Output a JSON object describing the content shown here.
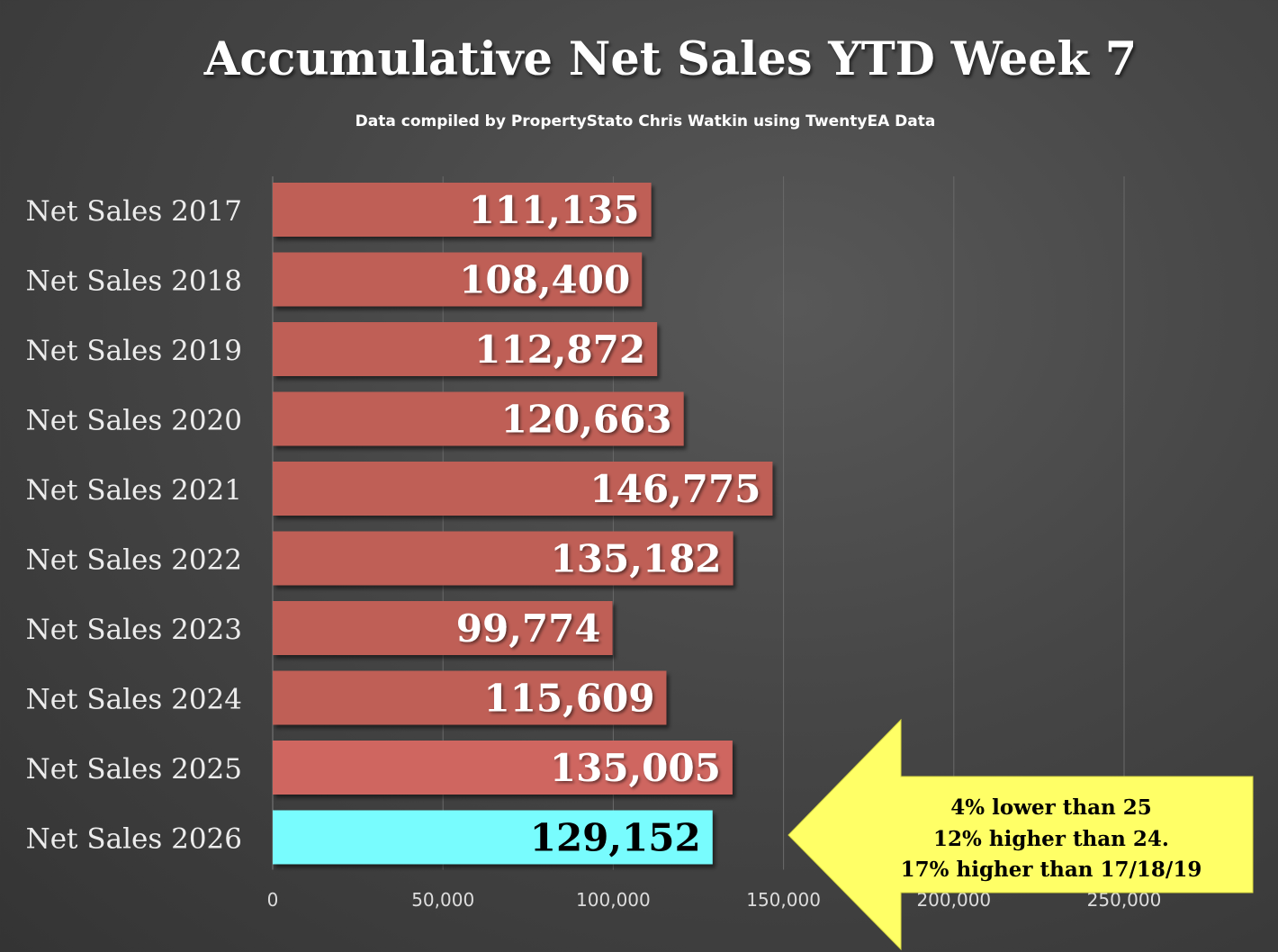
{
  "title": "Accumulative Net Sales YTD Week 7",
  "subtitle": "Data compiled by PropertyStato Chris Watkin using TwentyEA Data",
  "chart_data": {
    "type": "bar",
    "orientation": "horizontal",
    "title": "Accumulative Net Sales YTD Week 7",
    "subtitle": "Data compiled by PropertyStato Chris Watkin using TwentyEA Data",
    "categories": [
      "Net Sales 2017",
      "Net Sales 2018",
      "Net Sales 2019",
      "Net Sales 2020",
      "Net Sales 2021",
      "Net Sales 2022",
      "Net Sales 2023",
      "Net Sales 2024",
      "Net Sales 2025",
      "Net Sales 2026"
    ],
    "values": [
      111135,
      108400,
      112872,
      120663,
      146775,
      135182,
      99774,
      115609,
      135005,
      129152
    ],
    "value_labels": [
      "111,135",
      "108,400",
      "112,872",
      "120,663",
      "146,775",
      "135,182",
      "99,774",
      "115,609",
      "135,005",
      "129,152"
    ],
    "xlim": [
      0,
      250000
    ],
    "x_ticks": [
      0,
      50000,
      100000,
      150000,
      200000,
      250000
    ],
    "x_tick_labels": [
      "0",
      "50,000",
      "100,000",
      "150,000",
      "200,000",
      "250,000"
    ],
    "grid": true,
    "colors": {
      "default_bar": "#bf5e57",
      "bar_2025": "#cf6660",
      "highlight_bar": "#78fcfe",
      "callout": "#ffff66",
      "value_label_default": "#ffffff",
      "value_label_highlight": "#000000"
    },
    "highlight_index": 9,
    "annotation": {
      "lines": [
        "4% lower than 25",
        "12% higher than 24.",
        "17% higher than 17/18/19"
      ]
    }
  }
}
